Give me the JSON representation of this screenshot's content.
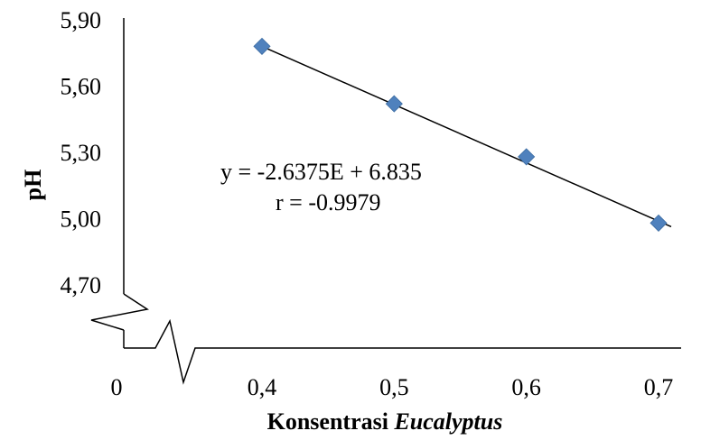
{
  "chart_data": {
    "type": "scatter",
    "x": [
      0.4,
      0.5,
      0.6,
      0.7
    ],
    "y": [
      5.78,
      5.52,
      5.28,
      4.98
    ],
    "xlabel_prefix": "Konsentrasi ",
    "xlabel_italic": "Eucalyptus",
    "ylabel": "pH",
    "x_ticks": [
      {
        "value": 0,
        "label": "0"
      },
      {
        "value": 0.4,
        "label": "0,4"
      },
      {
        "value": 0.5,
        "label": "0,5"
      },
      {
        "value": 0.6,
        "label": "0,6"
      },
      {
        "value": 0.7,
        "label": "0,7"
      }
    ],
    "y_ticks": [
      {
        "value": 4.7,
        "label": "4,70"
      },
      {
        "value": 5.0,
        "label": "5,00"
      },
      {
        "value": 5.3,
        "label": "5,30"
      },
      {
        "value": 5.6,
        "label": "5,60"
      },
      {
        "value": 5.9,
        "label": "5,90"
      }
    ],
    "ylim": [
      4.7,
      5.9
    ],
    "xlim": [
      0.4,
      0.7
    ],
    "axis_breaks": true,
    "grid": false,
    "trendline": {
      "slope": -2.6375,
      "intercept": 6.835
    },
    "annotations": {
      "equation": "y = -2.6375E + 6.835",
      "r": "r = -0.9979"
    },
    "marker_color": "#4f81bd",
    "marker_shape": "diamond"
  }
}
